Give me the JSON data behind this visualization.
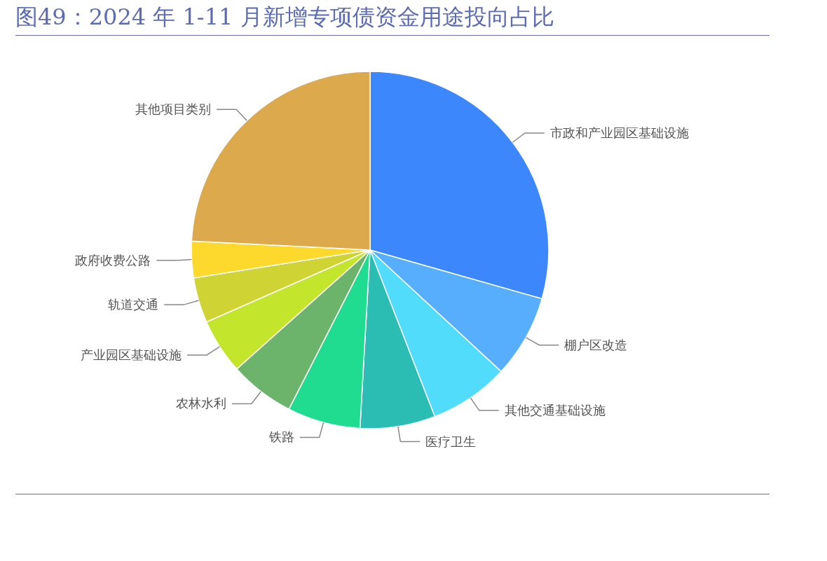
{
  "chart_data": {
    "type": "pie",
    "title": "图49：2024 年 1-11 月新增专项债资金用途投向占比",
    "categories": [
      "市政和产业园区基础设施",
      "棚户区改造",
      "其他交通基础设施",
      "医疗卫生",
      "铁路",
      "农林水利",
      "产业园区基础设施",
      "轨道交通",
      "政府收费公路",
      "其他项目类别"
    ],
    "values": [
      29.4,
      7.5,
      7.2,
      6.8,
      6.6,
      5.9,
      5.0,
      4.1,
      3.3,
      24.2
    ],
    "colors": [
      "#3d87fc",
      "#56aefc",
      "#52dcfb",
      "#2bbcb4",
      "#20dc90",
      "#6cb46c",
      "#c3e62c",
      "#cfd334",
      "#fcd92c",
      "#dcaa4c"
    ]
  }
}
